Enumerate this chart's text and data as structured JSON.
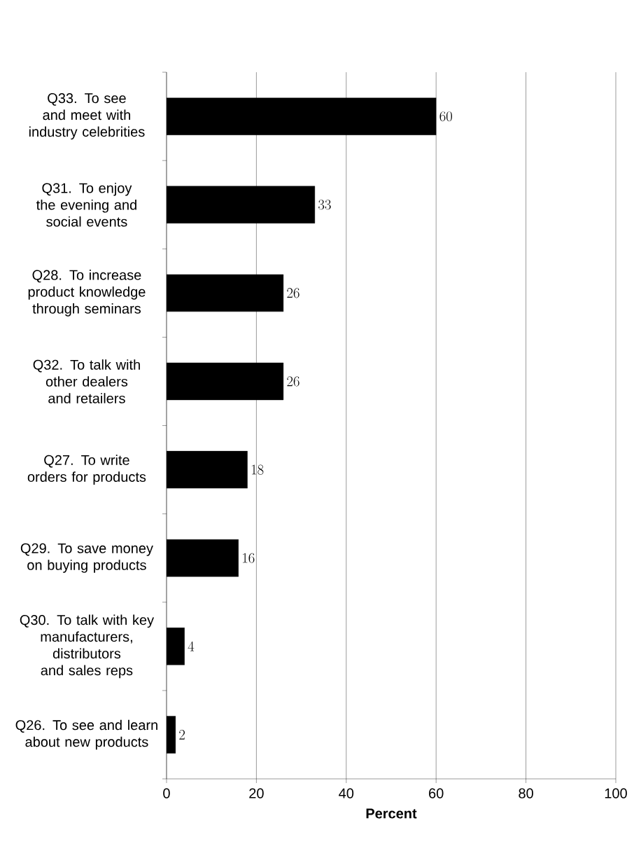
{
  "chart_data": {
    "type": "bar",
    "orientation": "horizontal",
    "categories": [
      "Q33. To see and meet with industry celebrities",
      "Q31. To enjoy the evening and social events",
      "Q28. To increase product knowledge through seminars",
      "Q32. To talk with other dealers and retailers",
      "Q27. To write orders for products",
      "Q29. To save money on buying products",
      "Q30. To talk with key manufacturers, distributors and sales reps",
      "Q26. To see and learn about new products"
    ],
    "values": [
      60,
      33,
      26,
      26,
      18,
      16,
      4,
      2
    ],
    "color": "#000000",
    "xlim": [
      0,
      100
    ],
    "xticks": [
      0,
      20,
      40,
      60,
      80,
      100
    ],
    "xlabel": "Percent",
    "data_labels": true,
    "grid": "x"
  }
}
